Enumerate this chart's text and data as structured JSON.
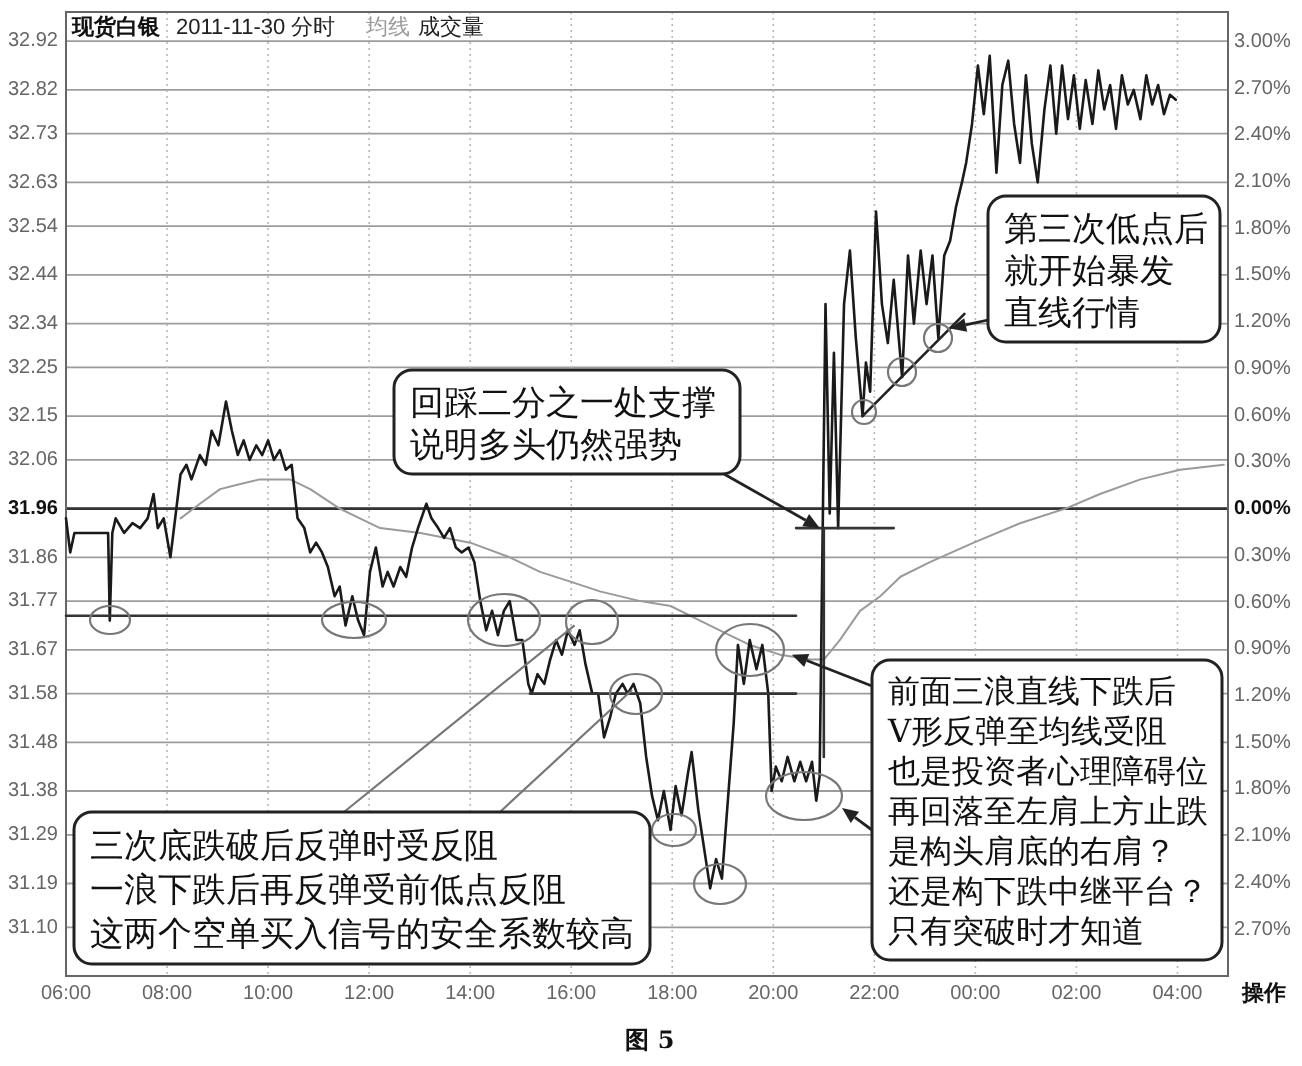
{
  "chart_data": {
    "type": "line",
    "title": "现货白银",
    "subtitle": "2011-11-30 分时",
    "xlim": [
      "2011-11-30T06:00",
      "2011-12-01T05:00"
    ],
    "xticks": [
      {
        "value": "2011-11-30T06:00",
        "label": "06:00"
      },
      {
        "value": "2011-11-30T08:00",
        "label": "08:00"
      },
      {
        "value": "2011-11-30T10:00",
        "label": "10:00"
      },
      {
        "value": "2011-11-30T12:00",
        "label": "12:00"
      },
      {
        "value": "2011-11-30T14:00",
        "label": "14:00"
      },
      {
        "value": "2011-11-30T16:00",
        "label": "16:00"
      },
      {
        "value": "2011-11-30T18:00",
        "label": "18:00"
      },
      {
        "value": "2011-11-30T20:00",
        "label": "20:00"
      },
      {
        "value": "2011-11-30T22:00",
        "label": "22:00"
      },
      {
        "value": "2011-12-01T00:00",
        "label": "00:00"
      },
      {
        "value": "2011-12-01T02:00",
        "label": "02:00"
      },
      {
        "value": "2011-12-01T04:00",
        "label": "04:00"
      }
    ],
    "ylim": [
      31.0,
      32.98
    ],
    "yticks": [
      32.92,
      32.82,
      32.73,
      32.63,
      32.54,
      32.44,
      32.34,
      32.25,
      32.15,
      32.06,
      31.96,
      31.86,
      31.77,
      31.67,
      31.58,
      31.48,
      31.38,
      31.29,
      31.19,
      {
        "value": 31.1,
        "label": "31.10"
      }
    ],
    "y2lim": [
      -3.0,
      3.19
    ],
    "y2ticks": [
      {
        "value": 3.0,
        "label": "3.00%"
      },
      {
        "value": 2.7,
        "label": "2.70%"
      },
      {
        "value": 2.4,
        "label": "2.40%"
      },
      {
        "value": 2.1,
        "label": "2.10%"
      },
      {
        "value": 1.8,
        "label": "1.80%"
      },
      {
        "value": 1.5,
        "label": "1.50%"
      },
      {
        "value": 1.2,
        "label": "1.20%"
      },
      {
        "value": 0.9,
        "label": "0.90%"
      },
      {
        "value": 0.6,
        "label": "0.60%"
      },
      {
        "value": 0.3,
        "label": "0.30%"
      },
      {
        "value": 0,
        "label": "0.00%"
      },
      {
        "value": -0.3,
        "label": "0.30%"
      },
      {
        "value": -0.6,
        "label": "0.60%"
      },
      {
        "value": -0.9,
        "label": "0.90%"
      },
      {
        "value": -1.2,
        "label": "1.20%"
      },
      {
        "value": -1.5,
        "label": "1.50%"
      },
      {
        "value": -1.8,
        "label": "1.80%"
      },
      {
        "value": -2.1,
        "label": "2.10%"
      },
      {
        "value": -2.4,
        "label": "2.40%"
      },
      {
        "value": -2.7,
        "label": "2.70%"
      }
    ],
    "grid": true,
    "legend": "top left",
    "ref_lines": [
      {
        "axis": "y",
        "value": 31.96,
        "color": "#333333"
      }
    ],
    "series": [
      {
        "name": "均线",
        "color": "#9a9a9a",
        "x": [
          "2011-11-30T08:16",
          "2011-11-30T08:39",
          "2011-11-30T09:03",
          "2011-11-30T09:26",
          "2011-11-30T09:50",
          "2011-11-30T10:26",
          "2011-11-30T10:50",
          "2011-11-30T11:25",
          "2011-11-30T12:13",
          "2011-11-30T13:01",
          "2011-11-30T14:00",
          "2011-11-30T14:47",
          "2011-11-30T15:23",
          "2011-11-30T15:59",
          "2011-11-30T16:34",
          "2011-11-30T17:22",
          "2011-11-30T17:58",
          "2011-11-30T18:33",
          "2011-11-30T19:08",
          "2011-11-30T19:32",
          "2011-11-30T20:08",
          "2011-11-30T20:44",
          "2011-11-30T21:00",
          "2011-11-30T21:19",
          "2011-11-30T21:43",
          "2011-11-30T22:07",
          "2011-11-30T22:31",
          "2011-11-30T23:06",
          "2011-11-30T23:58",
          "2011-12-01T00:53",
          "2011-12-01T01:47",
          "2011-12-01T02:28",
          "2011-12-01T03:16",
          "2011-12-01T04:03",
          "2011-12-01T04:55"
        ],
        "values": [
          31.94,
          31.97,
          32.0,
          32.01,
          32.02,
          32.02,
          32.0,
          31.96,
          31.92,
          31.91,
          31.89,
          31.86,
          31.83,
          31.81,
          31.79,
          31.77,
          31.76,
          31.73,
          31.7,
          31.68,
          31.66,
          31.65,
          31.65,
          31.69,
          31.75,
          31.78,
          31.82,
          31.85,
          31.89,
          31.93,
          31.96,
          31.99,
          32.02,
          32.04,
          32.05
        ]
      },
      {
        "color": "#1a1a1a",
        "x": [
          "2011-11-30T06:00",
          "2011-11-30T06:05",
          "2011-11-30T06:10",
          "2011-11-30T06:29",
          "2011-11-30T06:50",
          "2011-11-30T06:52",
          "2011-11-30T06:55",
          "2011-11-30T06:59",
          "2011-11-30T07:09",
          "2011-11-30T07:19",
          "2011-11-30T07:28",
          "2011-11-30T07:37",
          "2011-11-30T07:44",
          "2011-11-30T07:49",
          "2011-11-30T07:56",
          "2011-11-30T08:04",
          "2011-11-30T08:16",
          "2011-11-30T08:23",
          "2011-11-30T08:29",
          "2011-11-30T08:39",
          "2011-11-30T08:46",
          "2011-11-30T08:53",
          "2011-11-30T09:01",
          "2011-11-30T09:10",
          "2011-11-30T09:17",
          "2011-11-30T09:24",
          "2011-11-30T09:31",
          "2011-11-30T09:38",
          "2011-11-30T09:46",
          "2011-11-30T09:53",
          "2011-11-30T10:00",
          "2011-11-30T10:07",
          "2011-11-30T10:14",
          "2011-11-30T10:21",
          "2011-11-30T10:28",
          "2011-11-30T10:35",
          "2011-11-30T10:43",
          "2011-11-30T10:50",
          "2011-11-30T10:57",
          "2011-11-30T11:04",
          "2011-11-30T11:11",
          "2011-11-30T11:19",
          "2011-11-30T11:25",
          "2011-11-30T11:32",
          "2011-11-30T11:40",
          "2011-11-30T11:47",
          "2011-11-30T11:54",
          "2011-11-30T12:01",
          "2011-11-30T12:08",
          "2011-11-30T12:16",
          "2011-11-30T12:22",
          "2011-11-30T12:29",
          "2011-11-30T12:37",
          "2011-11-30T12:44",
          "2011-11-30T12:51",
          "2011-11-30T12:58",
          "2011-11-30T13:08",
          "2011-11-30T13:14",
          "2011-11-30T13:22",
          "2011-11-30T13:29",
          "2011-11-30T13:36",
          "2011-11-30T13:43",
          "2011-11-30T13:50",
          "2011-11-30T13:58",
          "2011-11-30T14:05",
          "2011-11-30T14:12",
          "2011-11-30T14:19",
          "2011-11-30T14:26",
          "2011-11-30T14:33",
          "2011-11-30T14:40",
          "2011-11-30T14:47",
          "2011-11-30T14:55",
          "2011-11-30T15:02",
          "2011-11-30T15:09",
          "2011-11-30T15:13",
          "2011-11-30T15:20",
          "2011-11-30T15:28",
          "2011-11-30T15:35",
          "2011-11-30T15:42",
          "2011-11-30T15:49",
          "2011-11-30T15:56",
          "2011-11-30T16:04",
          "2011-11-30T16:10",
          "2011-11-30T16:17",
          "2011-11-30T16:25",
          "2011-11-30T16:32",
          "2011-11-30T16:39",
          "2011-11-30T16:46",
          "2011-11-30T16:53",
          "2011-11-30T17:01",
          "2011-11-30T17:07",
          "2011-11-30T17:14",
          "2011-11-30T17:22",
          "2011-11-30T17:29",
          "2011-11-30T17:36",
          "2011-11-30T17:43",
          "2011-11-30T17:50",
          "2011-11-30T17:58",
          "2011-11-30T18:04",
          "2011-11-30T18:11",
          "2011-11-30T18:19",
          "2011-11-30T18:23",
          "2011-11-30T18:31",
          "2011-11-30T18:38",
          "2011-11-30T18:45",
          "2011-11-30T18:52",
          "2011-11-30T18:59",
          "2011-11-30T19:06",
          "2011-11-30T19:13",
          "2011-11-30T19:18",
          "2011-11-30T19:25",
          "2011-11-30T19:32",
          "2011-11-30T19:40",
          "2011-11-30T19:47",
          "2011-11-30T19:54",
          "2011-11-30T19:58",
          "2011-11-30T20:03",
          "2011-11-30T20:10",
          "2011-11-30T20:17",
          "2011-11-30T20:25",
          "2011-11-30T20:32",
          "2011-11-30T20:39",
          "2011-11-30T20:46",
          "2011-11-30T20:51",
          "2011-11-30T20:55",
          "2011-11-30T21:02",
          "2011-11-30T21:07",
          "2011-11-30T21:12",
          "2011-11-30T21:17",
          "2011-11-30T21:24",
          "2011-11-30T21:31",
          "2011-11-30T21:38",
          "2011-11-30T21:46",
          "2011-11-30T21:50",
          "2011-11-30T21:55",
          "2011-11-30T22:02",
          "2011-11-30T22:09",
          "2011-11-30T22:16",
          "2011-11-30T22:23",
          "2011-11-30T22:33",
          "2011-11-30T22:40",
          "2011-11-30T22:47",
          "2011-11-30T22:55",
          "2011-11-30T23:02",
          "2011-11-30T23:09",
          "2011-11-30T23:16",
          "2011-11-30T23:23",
          "2011-11-30T23:30",
          "2011-11-30T23:37",
          "2011-11-30T23:44",
          "2011-11-30T23:49",
          "2011-11-30T23:56",
          "2011-12-01T00:03",
          "2011-12-01T00:10",
          "2011-12-01T00:17",
          "2011-12-01T00:25",
          "2011-12-01T00:32",
          "2011-12-01T00:39",
          "2011-12-01T00:46",
          "2011-12-01T00:53",
          "2011-12-01T01:00",
          "2011-12-01T01:07",
          "2011-12-01T01:14",
          "2011-12-01T01:22",
          "2011-12-01T01:29",
          "2011-12-01T01:36",
          "2011-12-01T01:43",
          "2011-12-01T01:50",
          "2011-12-01T01:57",
          "2011-12-01T02:04",
          "2011-12-01T02:11",
          "2011-12-01T02:19",
          "2011-12-01T02:26",
          "2011-12-01T02:33",
          "2011-12-01T02:40",
          "2011-12-01T02:47",
          "2011-12-01T02:54",
          "2011-12-01T03:01",
          "2011-12-01T03:08",
          "2011-12-01T03:16",
          "2011-12-01T03:23",
          "2011-12-01T03:30",
          "2011-12-01T03:37",
          "2011-12-01T03:44",
          "2011-12-01T03:51",
          "2011-12-01T03:58"
        ],
        "values": [
          31.94,
          31.87,
          31.91,
          31.91,
          31.91,
          31.73,
          31.91,
          31.94,
          31.91,
          31.93,
          31.92,
          31.94,
          31.99,
          31.92,
          31.94,
          31.86,
          32.03,
          32.05,
          32.02,
          32.07,
          32.05,
          32.12,
          32.09,
          32.18,
          32.12,
          32.07,
          32.1,
          32.06,
          32.09,
          32.07,
          32.1,
          32.06,
          32.08,
          32.04,
          32.05,
          31.94,
          31.92,
          31.87,
          31.89,
          31.87,
          31.84,
          31.78,
          31.8,
          31.72,
          31.78,
          31.73,
          31.7,
          31.83,
          31.88,
          31.8,
          31.83,
          31.8,
          31.84,
          31.82,
          31.88,
          31.92,
          31.97,
          31.94,
          31.92,
          31.9,
          31.92,
          31.88,
          31.87,
          31.88,
          31.85,
          31.77,
          31.71,
          31.75,
          31.7,
          31.75,
          31.77,
          31.69,
          31.69,
          31.6,
          31.58,
          31.62,
          31.6,
          31.65,
          31.69,
          31.66,
          31.71,
          31.68,
          31.71,
          31.64,
          31.58,
          31.58,
          31.49,
          31.53,
          31.58,
          31.6,
          31.58,
          31.6,
          31.56,
          31.45,
          31.37,
          31.32,
          31.38,
          31.3,
          31.39,
          31.33,
          31.42,
          31.46,
          31.34,
          31.26,
          31.18,
          31.24,
          31.2,
          31.36,
          31.52,
          31.68,
          31.6,
          31.69,
          31.63,
          31.68,
          31.58,
          31.38,
          31.43,
          31.4,
          31.45,
          31.4,
          31.44,
          31.4,
          31.44,
          31.36,
          31.41,
          32.38,
          31.95,
          32.28,
          31.92,
          32.38,
          32.49,
          32.31,
          32.15,
          32.26,
          32.2,
          32.57,
          32.38,
          32.3,
          32.43,
          32.23,
          32.48,
          32.34,
          32.49,
          32.38,
          32.48,
          32.31,
          32.48,
          32.51,
          32.58,
          32.63,
          32.67,
          32.75,
          32.87,
          32.77,
          32.89,
          32.65,
          32.83,
          32.88,
          32.75,
          32.67,
          32.85,
          32.71,
          32.63,
          32.78,
          32.87,
          32.73,
          32.87,
          32.76,
          32.85,
          32.74,
          32.84,
          32.75,
          32.86,
          32.78,
          32.83,
          32.74,
          32.85,
          32.79,
          32.82,
          32.76,
          32.85,
          32.79,
          32.83,
          32.77,
          32.81,
          32.8
        ]
      },
      {
        "color": "#333333",
        "x": [
          "2011-11-30T06:00",
          "2011-11-30T20:27"
        ],
        "values": [
          31.74,
          31.74
        ]
      },
      {
        "color": "#333333",
        "x": [
          "2011-11-30T15:11",
          "2011-11-30T20:27"
        ],
        "values": [
          31.58,
          31.58
        ]
      },
      {
        "color": "#333333",
        "x": [
          "2011-11-30T20:27",
          "2011-11-30T22:23"
        ],
        "values": [
          31.92,
          31.92
        ]
      },
      {
        "color": "#333333",
        "x": [
          "2011-11-30T21:00",
          "2011-11-30T21:00"
        ],
        "values": [
          31.92,
          31.45
        ]
      },
      {
        "color": "#222222",
        "x": [
          "2011-11-30T21:46",
          "2011-11-30T23:47"
        ],
        "values": [
          32.15,
          32.36
        ]
      }
    ],
    "annotations": [
      "成交量",
      {
        "text": "回踩二分之一处支撑说明多头仍然强势",
        "x": "2011-11-30T20:55",
        "y": 31.92
      },
      {
        "text": "第三次低点后就开始暴发直线行情",
        "x": "2011-11-30T23:30",
        "y": 32.33
      },
      {
        "text": "三次底跌破后反弹时受反阻一浪下跌后再反弹受前低点反阻这两个空单买入信号的安全系数较高",
        "x": "2011-11-30T16:04",
        "y": 31.72
      },
      {
        "text": "前面三浪直线下跌后V形反弹至均线受阻也是投资者心理障碍位再回落至左肩上方止跌是构头肩底的右肩？还是构下跌中继平台？只有突破时才知道",
        "x": "2011-11-30T20:22",
        "y": 31.66
      },
      "操作",
      "图 5"
    ]
  }
}
